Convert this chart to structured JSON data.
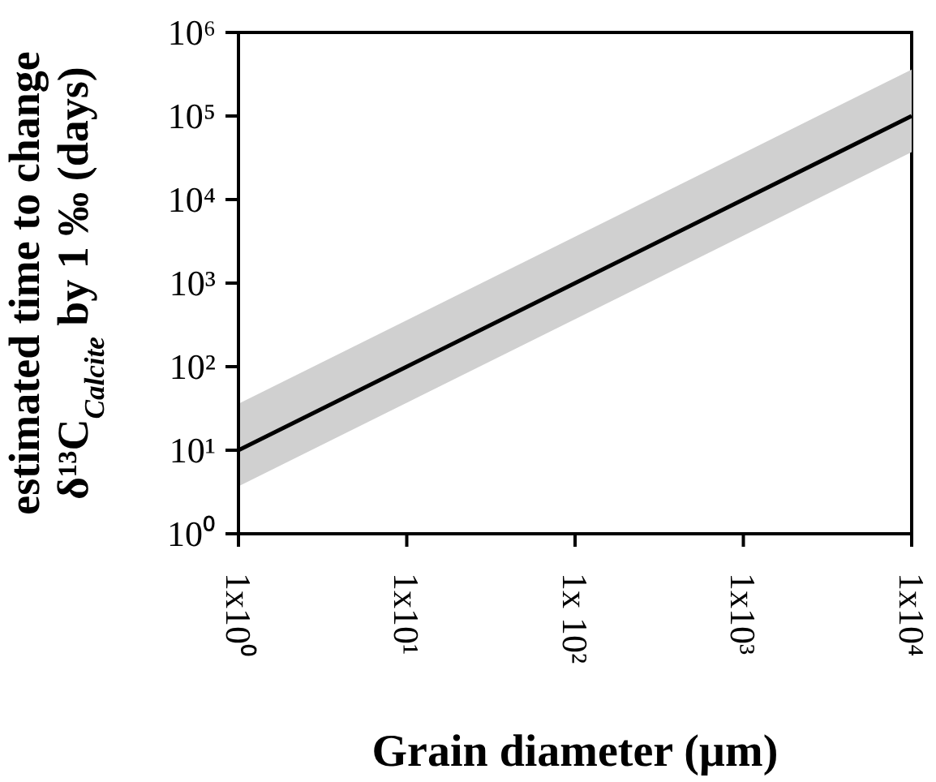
{
  "chart_data": {
    "type": "line",
    "xlabel": "Grain diameter (µm)",
    "ylabel": "estimated time to change\nδ¹³C$_{Calcite}$ by 1 ‰ (days)",
    "log": "xy",
    "x": [
      1,
      10,
      100,
      1000,
      10000
    ],
    "series": [
      {
        "color": "#000000",
        "values": [
          10,
          100,
          1000,
          10000,
          100000
        ],
        "lower": [
          3.7,
          37,
          370,
          3700,
          37000
        ],
        "upper": [
          36,
          360,
          3600,
          36000,
          360000
        ]
      }
    ],
    "xlim": [
      1,
      10000
    ],
    "xticks": [
      {
        "value": 1,
        "label": "1x10⁰"
      },
      {
        "value": 10,
        "label": "1x10¹"
      },
      {
        "value": 100,
        "label": "1x 10²"
      },
      {
        "value": 1000,
        "label": "1x10³"
      },
      {
        "value": 10000,
        "label": "1x10⁴"
      }
    ],
    "ylim": [
      1,
      1000000
    ],
    "yticks": [
      {
        "value": 1,
        "label": "10⁰"
      },
      {
        "value": 10,
        "label": "10¹"
      },
      {
        "value": 100,
        "label": "10²"
      },
      {
        "value": 1000,
        "label": "10³"
      },
      {
        "value": 10000,
        "label": "10⁴"
      },
      {
        "value": 100000,
        "label": "10⁵"
      },
      {
        "value": 1000000,
        "label": "10⁶"
      }
    ]
  }
}
